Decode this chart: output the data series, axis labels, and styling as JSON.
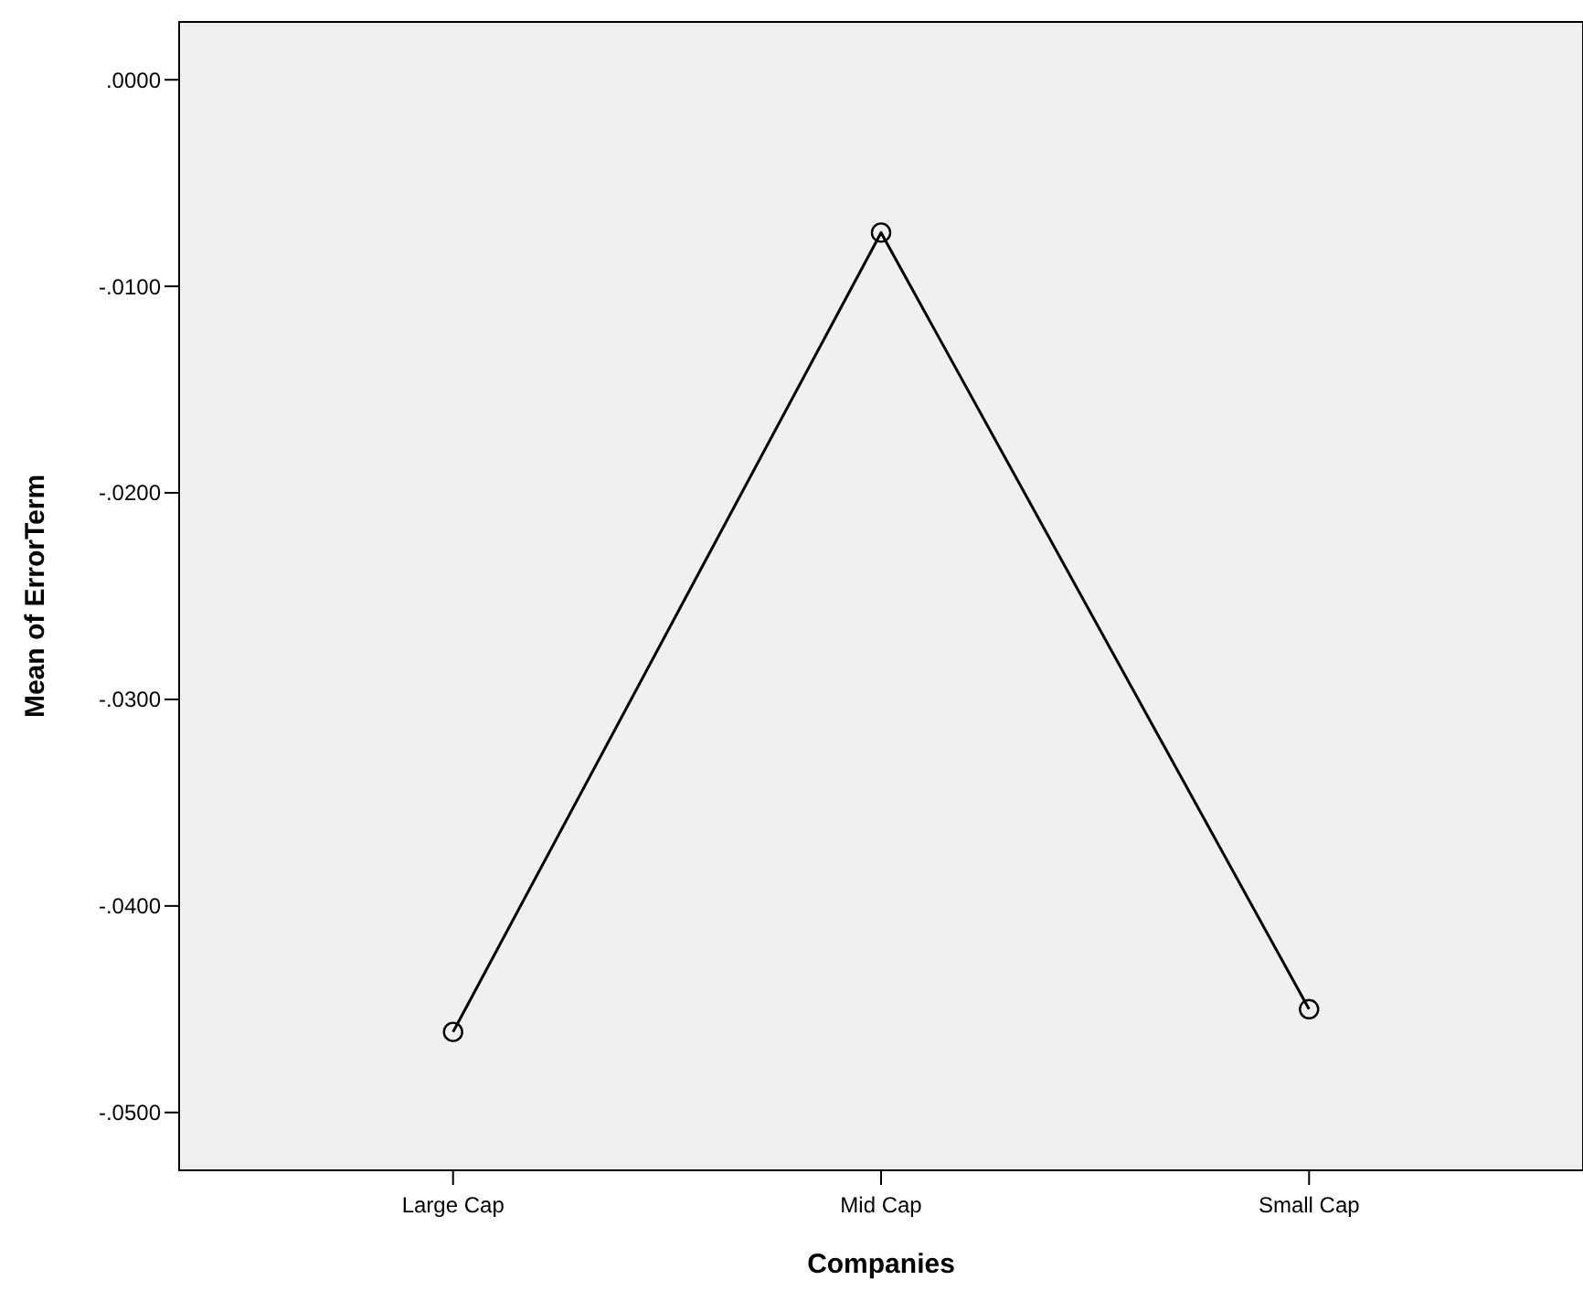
{
  "chart_data": {
    "type": "line",
    "xlabel": "Companies",
    "ylabel": "Mean of ErrorTerm",
    "categories": [
      "Large Cap",
      "Mid Cap",
      "Small Cap"
    ],
    "series": [
      {
        "color": "#000000",
        "values": [
          -0.0461,
          -0.0074,
          -0.045
        ]
      }
    ],
    "ylim": [
      -0.0528,
      0.0028
    ],
    "yticks": [
      {
        "value": 0,
        "label": ".0000"
      },
      {
        "value": -0.01,
        "label": "-.0100"
      },
      {
        "value": -0.02,
        "label": "-.0200"
      },
      {
        "value": -0.03,
        "label": "-.0300"
      },
      {
        "value": -0.04,
        "label": "-.0400"
      },
      {
        "value": -0.05,
        "label": "-.0500"
      }
    ],
    "marker": "circle",
    "line_style": "solid",
    "grid": false
  }
}
